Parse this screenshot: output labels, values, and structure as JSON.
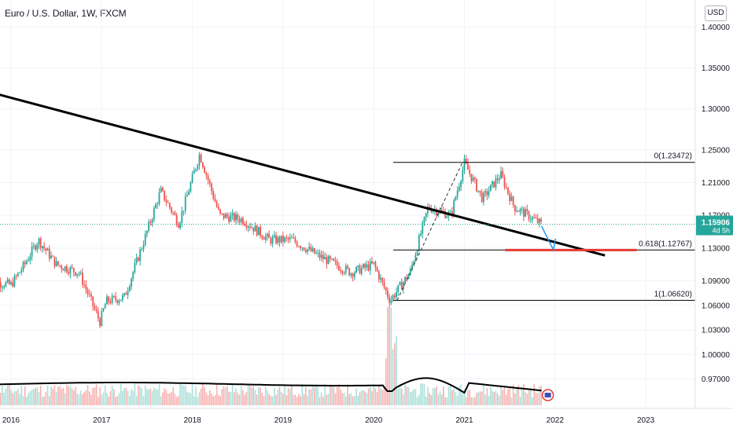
{
  "header": {
    "title": "Euro / U.S. Dollar, 1W, FXCM",
    "currency": "USD"
  },
  "price_label": {
    "price": "1.15906",
    "countdown": "4d 5h",
    "color": "#26a69a"
  },
  "fib_levels": [
    {
      "label": "0(1.23472)",
      "value": 1.23472
    },
    {
      "label": "0.618(1.12767)",
      "value": 1.12767
    },
    {
      "label": "1(1.06620)",
      "value": 1.0662
    }
  ],
  "colors": {
    "up": "#26a69a",
    "down": "#ef5350",
    "trendline": "#000000",
    "support": "#e53935",
    "arrow": "#2196f3",
    "grid": "#f0f3fa"
  },
  "chart_data": {
    "type": "candlestick",
    "symbol": "EUR/USD",
    "timeframe": "1W",
    "y_axis_ticks": [
      "1.40000",
      "1.35000",
      "1.30000",
      "1.25000",
      "1.21000",
      "1.17000",
      "1.13000",
      "1.09000",
      "1.06000",
      "1.03000",
      "1.00000",
      "0.97000"
    ],
    "x_axis_ticks": [
      "2016",
      "2017",
      "2018",
      "2019",
      "2020",
      "2021",
      "2022",
      "2023"
    ],
    "price_path": [
      {
        "date": "2015.75",
        "close": 1.09
      },
      {
        "date": "2016.00",
        "close": 1.085
      },
      {
        "date": "2016.15",
        "close": 1.11
      },
      {
        "date": "2016.30",
        "close": 1.14
      },
      {
        "date": "2016.50",
        "close": 1.11
      },
      {
        "date": "2016.75",
        "close": 1.1
      },
      {
        "date": "2016.98",
        "close": 1.04
      },
      {
        "date": "2017.05",
        "close": 1.065
      },
      {
        "date": "2017.25",
        "close": 1.07
      },
      {
        "date": "2017.50",
        "close": 1.15
      },
      {
        "date": "2017.65",
        "close": 1.2
      },
      {
        "date": "2017.85",
        "close": 1.16
      },
      {
        "date": "2018.08",
        "close": 1.245
      },
      {
        "date": "2018.30",
        "close": 1.17
      },
      {
        "date": "2018.55",
        "close": 1.165
      },
      {
        "date": "2018.85",
        "close": 1.14
      },
      {
        "date": "2019.10",
        "close": 1.14
      },
      {
        "date": "2019.40",
        "close": 1.12
      },
      {
        "date": "2019.75",
        "close": 1.1
      },
      {
        "date": "2020.00",
        "close": 1.11
      },
      {
        "date": "2020.18",
        "close": 1.066
      },
      {
        "date": "2020.40",
        "close": 1.1
      },
      {
        "date": "2020.60",
        "close": 1.18
      },
      {
        "date": "2020.85",
        "close": 1.17
      },
      {
        "date": "2021.00",
        "close": 1.234
      },
      {
        "date": "2021.20",
        "close": 1.19
      },
      {
        "date": "2021.40",
        "close": 1.22
      },
      {
        "date": "2021.55",
        "close": 1.18
      },
      {
        "date": "2021.70",
        "close": 1.17
      },
      {
        "date": "2021.85",
        "close": 1.159
      }
    ],
    "trendline": [
      {
        "date": "2015.75",
        "price": 1.321
      },
      {
        "date": "2022.55",
        "price": 1.121
      }
    ],
    "support_line": {
      "from": "2021.45",
      "to": "2022.90",
      "price": 1.1276
    },
    "projection_arrow": [
      {
        "date": "2021.85",
        "price": 1.157
      },
      {
        "date": "2021.98",
        "price": 1.128
      }
    ],
    "volume_ma": true,
    "ylim": [
      0.94,
      1.4
    ]
  }
}
